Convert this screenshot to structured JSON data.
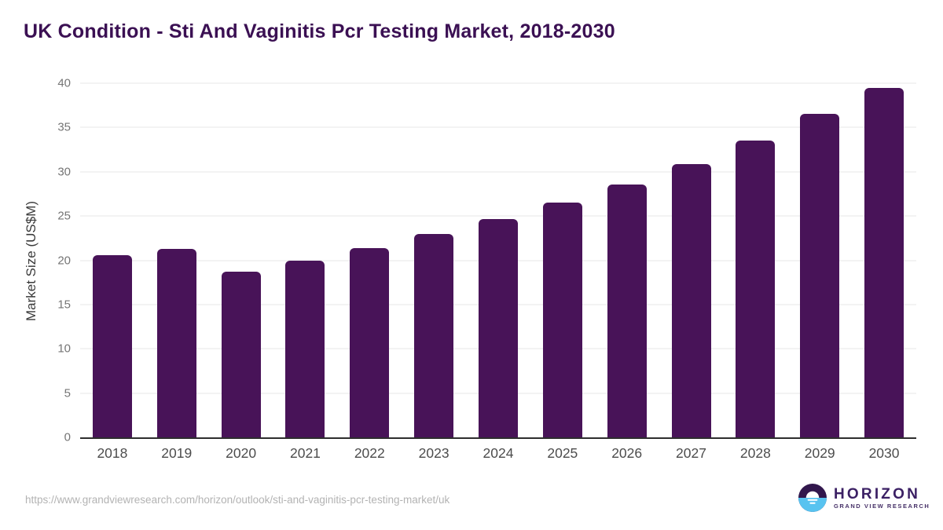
{
  "title": "UK Condition - Sti And Vaginitis Pcr Testing Market, 2018-2030",
  "chart_data": {
    "type": "bar",
    "title": "UK Condition - Sti And Vaginitis Pcr Testing Market, 2018-2030",
    "categories": [
      "2018",
      "2019",
      "2020",
      "2021",
      "2022",
      "2023",
      "2024",
      "2025",
      "2026",
      "2027",
      "2028",
      "2029",
      "2030"
    ],
    "values": [
      20.6,
      21.3,
      18.7,
      20.0,
      21.4,
      23.0,
      24.7,
      26.5,
      28.6,
      30.9,
      33.5,
      36.5,
      39.5
    ],
    "xlabel": "",
    "ylabel": "Market Size (US$M)",
    "ylim": [
      0,
      40
    ],
    "yticks": [
      0,
      5,
      10,
      15,
      20,
      25,
      30,
      35,
      40
    ],
    "grid": true,
    "legend": "none",
    "bar_color": "#481358"
  },
  "footer": {
    "source_url": "https://www.grandviewresearch.com/horizon/outlook/sti-and-vaginitis-pcr-testing-market/uk",
    "logo": {
      "name": "HORIZON",
      "subtitle": "GRAND VIEW RESEARCH",
      "purple": "#32174d",
      "blue": "#58c3f0"
    }
  },
  "colors": {
    "title_text": "#3b1053",
    "bar": "#481358",
    "gridline": "#e7e7e7",
    "axis_line": "#2e2e2e",
    "y_tick_text": "#757575",
    "x_tick_text": "#4c4c4c",
    "url_text": "#b3b3b3"
  }
}
